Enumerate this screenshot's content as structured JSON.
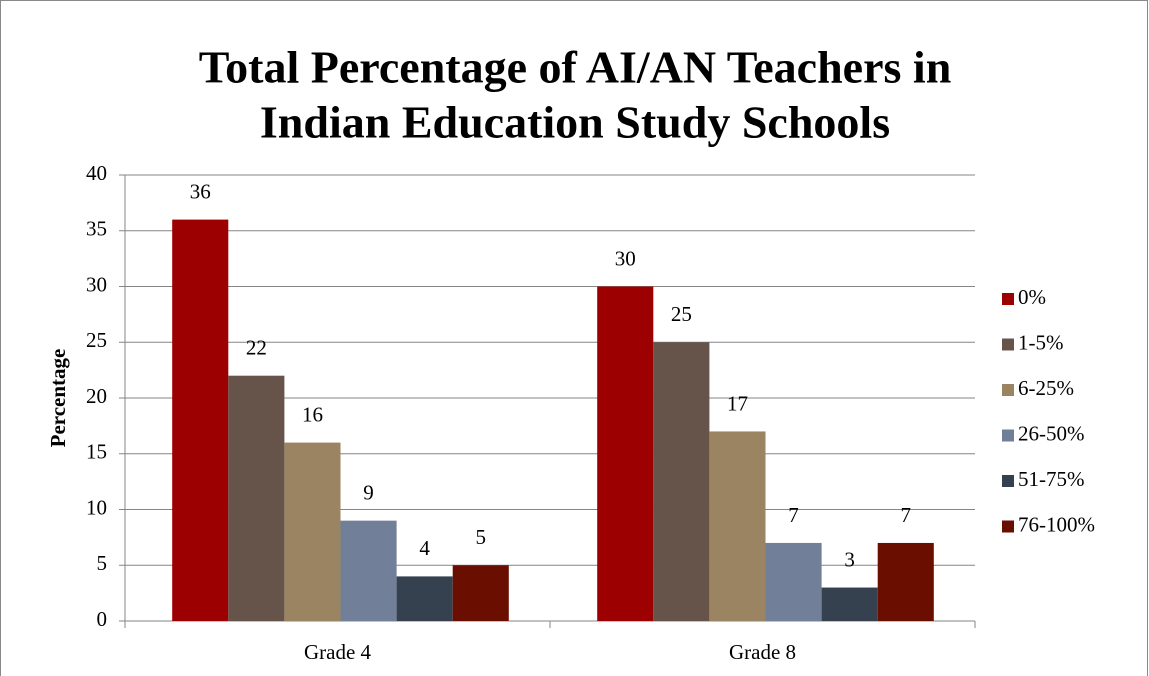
{
  "chart_data": {
    "type": "bar",
    "title": [
      "Total Percentage of AI/AN Teachers in",
      "Indian Education Study Schools"
    ],
    "y_label": "Percentage",
    "categories": [
      "Grade 4",
      "Grade 8"
    ],
    "series": [
      {
        "name": "0%",
        "color": "#9c0000",
        "values": [
          36,
          30
        ]
      },
      {
        "name": "1-5%",
        "color": "#66544a",
        "values": [
          22,
          25
        ]
      },
      {
        "name": "6-25%",
        "color": "#9a8461",
        "values": [
          16,
          17
        ]
      },
      {
        "name": "26-50%",
        "color": "#717f99",
        "values": [
          9,
          7
        ]
      },
      {
        "name": "51-75%",
        "color": "#364150",
        "values": [
          4,
          3
        ]
      },
      {
        "name": "76-100%",
        "color": "#6a0e00",
        "values": [
          5,
          7
        ]
      }
    ],
    "ylim": [
      0,
      40
    ],
    "yticks": [
      0,
      5,
      10,
      15,
      20,
      25,
      30,
      35,
      40
    ],
    "grid": true,
    "legend": "right"
  }
}
